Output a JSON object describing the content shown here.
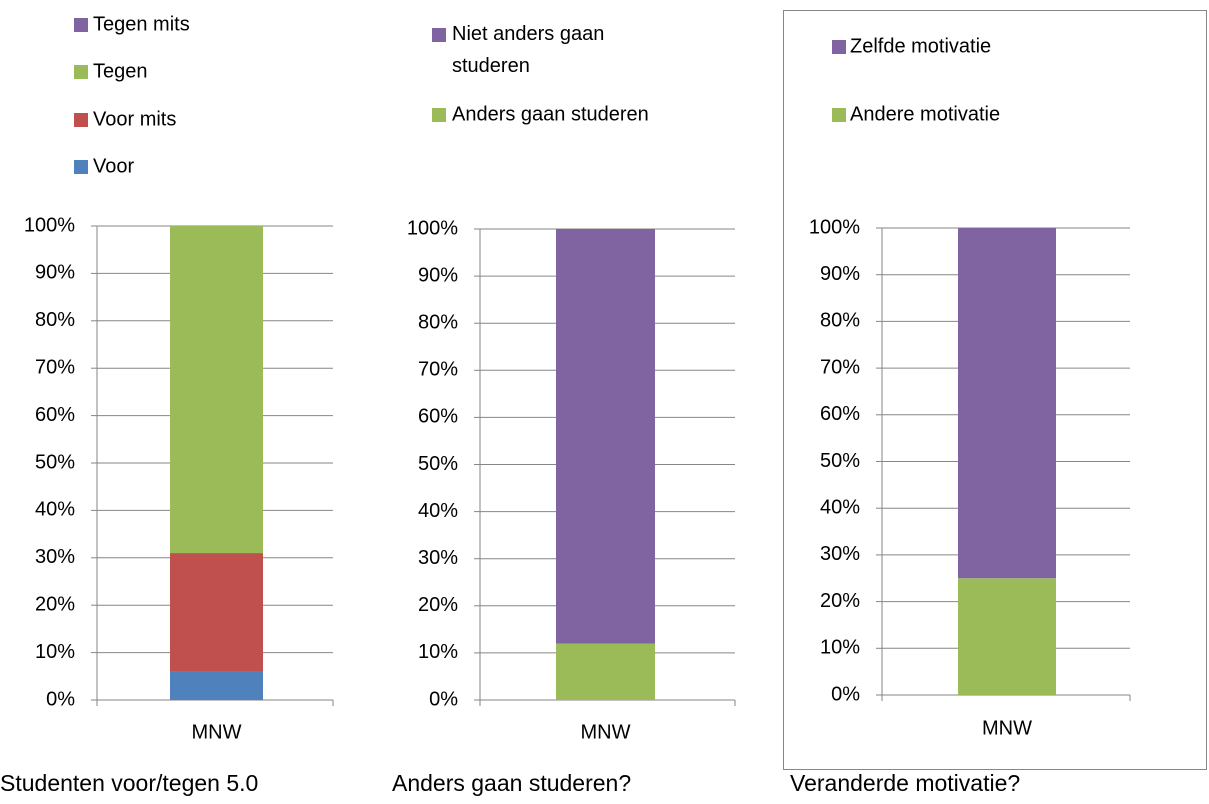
{
  "chart_data": [
    {
      "type": "bar",
      "stacked": true,
      "title": "Studenten voor/tegen 5.0",
      "categories": [
        "MNW"
      ],
      "series": [
        {
          "name": "Voor",
          "color": "#4f81bd",
          "values": [
            6
          ]
        },
        {
          "name": "Voor mits",
          "color": "#c0504d",
          "values": [
            25
          ]
        },
        {
          "name": "Tegen",
          "color": "#9bbb59",
          "values": [
            69
          ]
        },
        {
          "name": "Tegen mits",
          "color": "#8064a2",
          "values": [
            0
          ]
        }
      ],
      "ylim": [
        0,
        100
      ],
      "yticks": [
        {
          "value": 0,
          "label": "0%"
        },
        {
          "value": 10,
          "label": "10%"
        },
        {
          "value": 20,
          "label": "20%"
        },
        {
          "value": 30,
          "label": "30%"
        },
        {
          "value": 40,
          "label": "40%"
        },
        {
          "value": 50,
          "label": "50%"
        },
        {
          "value": 60,
          "label": "60%"
        },
        {
          "value": 70,
          "label": "70%"
        },
        {
          "value": 80,
          "label": "80%"
        },
        {
          "value": 90,
          "label": "90%"
        },
        {
          "value": 100,
          "label": "100%"
        }
      ],
      "grid": true
    },
    {
      "type": "bar",
      "stacked": true,
      "title": "Anders gaan studeren?",
      "categories": [
        "MNW"
      ],
      "series": [
        {
          "name": "Anders gaan studeren",
          "color": "#9bbb59",
          "values": [
            12
          ]
        },
        {
          "name": "Niet anders gaan studeren",
          "color": "#8064a2",
          "values": [
            88
          ]
        }
      ],
      "ylim": [
        0,
        100
      ],
      "yticks": [
        {
          "value": 0,
          "label": "0%"
        },
        {
          "value": 10,
          "label": "10%"
        },
        {
          "value": 20,
          "label": "20%"
        },
        {
          "value": 30,
          "label": "30%"
        },
        {
          "value": 40,
          "label": "40%"
        },
        {
          "value": 50,
          "label": "50%"
        },
        {
          "value": 60,
          "label": "60%"
        },
        {
          "value": 70,
          "label": "70%"
        },
        {
          "value": 80,
          "label": "80%"
        },
        {
          "value": 90,
          "label": "90%"
        },
        {
          "value": 100,
          "label": "100%"
        }
      ],
      "grid": true
    },
    {
      "type": "bar",
      "stacked": true,
      "title": "Veranderde motivatie?",
      "categories": [
        "MNW"
      ],
      "series": [
        {
          "name": "Andere motivatie",
          "color": "#9bbb59",
          "values": [
            25
          ]
        },
        {
          "name": "Zelfde motivatie",
          "color": "#8064a2",
          "values": [
            75
          ]
        }
      ],
      "ylim": [
        0,
        100
      ],
      "yticks": [
        {
          "value": 0,
          "label": "0%"
        },
        {
          "value": 10,
          "label": "10%"
        },
        {
          "value": 20,
          "label": "20%"
        },
        {
          "value": 30,
          "label": "30%"
        },
        {
          "value": 40,
          "label": "40%"
        },
        {
          "value": 50,
          "label": "50%"
        },
        {
          "value": 60,
          "label": "60%"
        },
        {
          "value": 70,
          "label": "70%"
        },
        {
          "value": 80,
          "label": "80%"
        },
        {
          "value": 90,
          "label": "90%"
        },
        {
          "value": 100,
          "label": "100%"
        }
      ],
      "grid": true
    }
  ]
}
